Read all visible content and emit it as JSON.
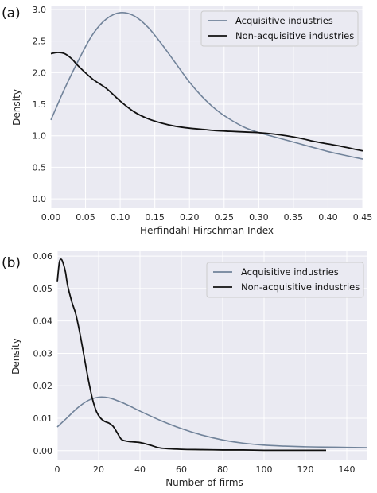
{
  "chart_data": [
    {
      "type": "line",
      "panel_label": "(a)",
      "xlabel": "Herfindahl-Hirschman Index",
      "ylabel": "Density",
      "xlim": [
        0,
        0.45
      ],
      "ylim": [
        -0.15,
        3.05
      ],
      "xticks": [
        "0.00",
        "0.05",
        "0.10",
        "0.15",
        "0.20",
        "0.25",
        "0.30",
        "0.35",
        "0.40",
        "0.45"
      ],
      "yticks": [
        "0.0",
        "0.5",
        "1.0",
        "1.5",
        "2.0",
        "2.5",
        "3.0"
      ],
      "grid": true,
      "legend_position": "top-right",
      "series": [
        {
          "name": "Acquisitive industries",
          "color": "#71839a",
          "x": [
            0,
            0.02,
            0.04,
            0.06,
            0.08,
            0.1,
            0.12,
            0.14,
            0.16,
            0.18,
            0.2,
            0.22,
            0.24,
            0.26,
            0.28,
            0.3,
            0.32,
            0.34,
            0.36,
            0.38,
            0.4,
            0.42,
            0.45
          ],
          "y": [
            1.25,
            1.75,
            2.2,
            2.6,
            2.85,
            2.95,
            2.9,
            2.72,
            2.45,
            2.15,
            1.85,
            1.6,
            1.4,
            1.25,
            1.13,
            1.05,
            0.99,
            0.93,
            0.87,
            0.81,
            0.75,
            0.7,
            0.63
          ]
        },
        {
          "name": "Non-acquisitive industries",
          "color": "#111111",
          "x": [
            0,
            0.01,
            0.02,
            0.03,
            0.04,
            0.06,
            0.08,
            0.1,
            0.12,
            0.14,
            0.16,
            0.18,
            0.2,
            0.22,
            0.24,
            0.26,
            0.28,
            0.3,
            0.32,
            0.34,
            0.36,
            0.38,
            0.4,
            0.42,
            0.45
          ],
          "y": [
            2.3,
            2.32,
            2.3,
            2.22,
            2.1,
            1.9,
            1.75,
            1.55,
            1.38,
            1.27,
            1.2,
            1.15,
            1.12,
            1.1,
            1.08,
            1.07,
            1.06,
            1.05,
            1.03,
            1.0,
            0.96,
            0.91,
            0.87,
            0.83,
            0.76
          ]
        }
      ]
    },
    {
      "type": "line",
      "panel_label": "(b)",
      "xlabel": "Number of firms",
      "ylabel": "Density",
      "xlim": [
        0,
        150
      ],
      "ylim": [
        -0.003,
        0.0615
      ],
      "xticks": [
        "0",
        "20",
        "40",
        "60",
        "80",
        "100",
        "120",
        "140"
      ],
      "yticks": [
        "0.00",
        "0.01",
        "0.02",
        "0.03",
        "0.04",
        "0.05",
        "0.06"
      ],
      "grid": true,
      "legend_position": "top-right",
      "series": [
        {
          "name": "Acquisitive industries",
          "color": "#71839a",
          "x": [
            0,
            5,
            10,
            15,
            20,
            25,
            30,
            35,
            40,
            50,
            60,
            70,
            80,
            90,
            100,
            110,
            120,
            130,
            140,
            150
          ],
          "y": [
            0.0073,
            0.0103,
            0.0133,
            0.0155,
            0.0165,
            0.0163,
            0.0152,
            0.0138,
            0.0122,
            0.0093,
            0.0068,
            0.0048,
            0.0033,
            0.0023,
            0.0017,
            0.0014,
            0.0012,
            0.0011,
            0.001,
            0.0009
          ]
        },
        {
          "name": "Non-acquisitive industries",
          "color": "#111111",
          "x": [
            0,
            1,
            2,
            3,
            4,
            5,
            7,
            9,
            11,
            13,
            15,
            17,
            19,
            21,
            23,
            25,
            27,
            29,
            31,
            33,
            35,
            40,
            45,
            50,
            60,
            70,
            80,
            90,
            100,
            110,
            120,
            130
          ],
          "y": [
            0.052,
            0.058,
            0.059,
            0.0575,
            0.055,
            0.051,
            0.046,
            0.042,
            0.036,
            0.029,
            0.022,
            0.016,
            0.012,
            0.01,
            0.009,
            0.0085,
            0.0075,
            0.0055,
            0.0035,
            0.003,
            0.0028,
            0.0025,
            0.0017,
            0.0008,
            0.0004,
            0.0003,
            0.0002,
            0.0002,
            0.0001,
            0.0001,
            0.0001,
            0.0001
          ]
        }
      ]
    }
  ]
}
